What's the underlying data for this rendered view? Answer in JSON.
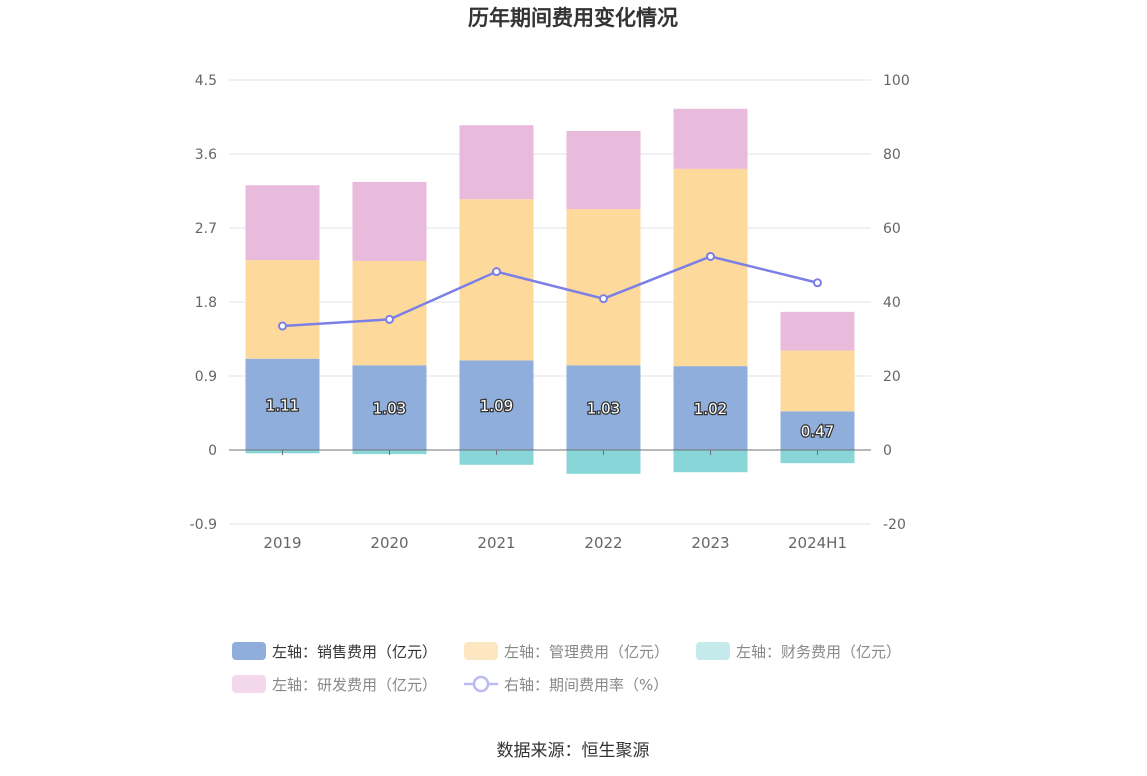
{
  "chart_data": {
    "type": "bar",
    "stacked": true,
    "title": "历年期间费用变化情况",
    "categories": [
      "2019",
      "2020",
      "2021",
      "2022",
      "2023",
      "2024H1"
    ],
    "y_left": {
      "min": -0.9,
      "max": 4.5,
      "ticks": [
        "-0.9",
        "0",
        "0.9",
        "1.8",
        "2.7",
        "3.6",
        "4.5"
      ]
    },
    "y_right": {
      "min": -20,
      "max": 100,
      "ticks": [
        "-20",
        "0",
        "20",
        "40",
        "60",
        "80",
        "100"
      ]
    },
    "grid": true,
    "legend_position": "bottom",
    "series": [
      {
        "name": "左轴：销售费用（亿元）",
        "type": "bar",
        "axis": "left",
        "color": "#8faedc",
        "values": [
          1.11,
          1.03,
          1.09,
          1.03,
          1.02,
          0.47
        ],
        "labels": [
          "1.11",
          "1.03",
          "1.09",
          "1.03",
          "1.02",
          "0.47"
        ]
      },
      {
        "name": "左轴：管理费用（亿元）",
        "type": "bar",
        "axis": "left",
        "color": "#fdd99c",
        "values": [
          1.2,
          1.27,
          1.96,
          1.9,
          2.4,
          0.74
        ]
      },
      {
        "name": "左轴：财务费用（亿元）",
        "type": "bar",
        "axis": "left",
        "color": "#88d6d8",
        "values": [
          -0.04,
          -0.05,
          -0.18,
          -0.29,
          -0.27,
          -0.16
        ]
      },
      {
        "name": "左轴：研发费用（亿元）",
        "type": "bar",
        "axis": "left",
        "color": "#e8badb",
        "values": [
          0.91,
          0.96,
          0.9,
          0.95,
          0.73,
          0.47
        ]
      },
      {
        "name": "右轴：期间费用率（%）",
        "type": "line",
        "axis": "right",
        "color": "#7b7fe6",
        "values": [
          33.5,
          35.3,
          48.2,
          40.9,
          52.3,
          45.2
        ]
      }
    ],
    "source": "数据来源：恒生聚源"
  }
}
